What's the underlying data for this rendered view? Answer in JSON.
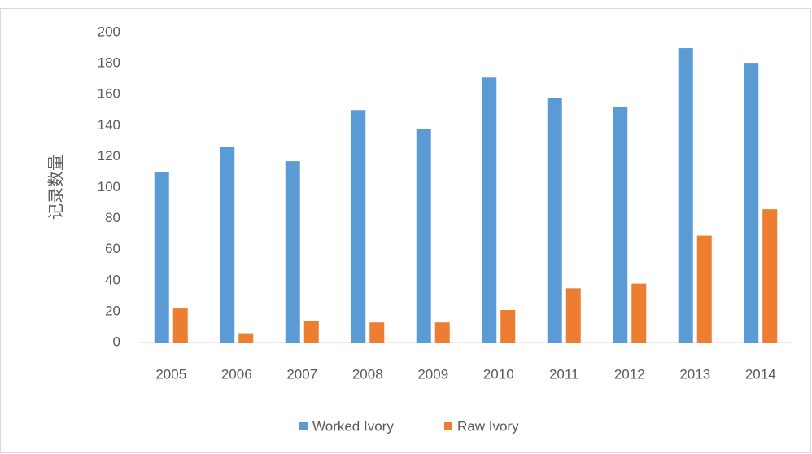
{
  "chart_data": {
    "type": "bar",
    "y_label": "记录数量",
    "categories": [
      "2005",
      "2006",
      "2007",
      "2008",
      "2009",
      "2010",
      "2011",
      "2012",
      "2013",
      "2014"
    ],
    "series": [
      {
        "name": "Worked Ivory",
        "color": "#5b9bd5",
        "values": [
          110,
          126,
          117,
          150,
          138,
          171,
          158,
          152,
          190,
          180
        ]
      },
      {
        "name": "Raw Ivory",
        "color": "#ed7d31",
        "values": [
          22,
          6,
          14,
          13,
          13,
          21,
          35,
          38,
          69,
          86
        ]
      }
    ],
    "ylim": [
      0,
      200
    ],
    "yticks": [
      0,
      20,
      40,
      60,
      80,
      100,
      120,
      140,
      160,
      180,
      200
    ],
    "grid": false,
    "legend": "bottom"
  }
}
